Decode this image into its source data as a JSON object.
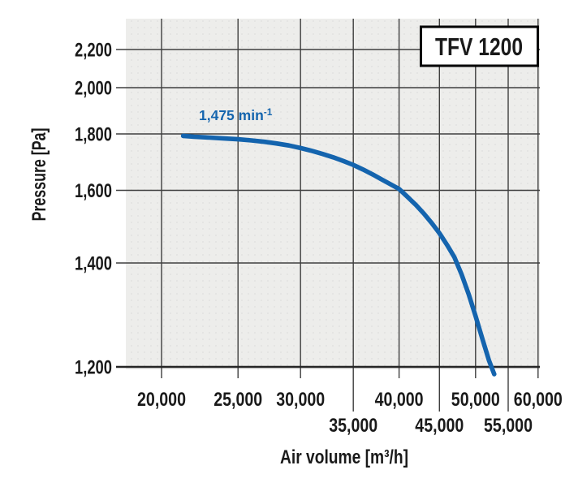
{
  "model_badge": {
    "label": "TFV 1200"
  },
  "curve_label": {
    "main": "1,475 min",
    "sup": "-1",
    "full": "1,475 min⁻¹"
  },
  "axes": {
    "x_title": "Air volume [m³/h]",
    "y_title": "Pressure [Pa]"
  },
  "colors": {
    "curve": "#1464ae",
    "curve_label": "#1565ae",
    "grid": "#3f3f3f",
    "axis_line": "#262626",
    "plot_bg": "#ededeb",
    "plot_dots": "#dfdfdd",
    "text": "#1a1a1a",
    "badge_bg": "#ffffff",
    "badge_border": "#000000",
    "page_bg": "#ffffff"
  },
  "chart_data": {
    "type": "line",
    "title": "TFV 1200",
    "xlabel": "Air volume [m³/h]",
    "ylabel": "Pressure [Pa]",
    "x_scale": "log",
    "y_scale": "nonlinear-reciprocal",
    "xlim": [
      18000,
      60000
    ],
    "ylim": [
      1200,
      2400
    ],
    "grid": true,
    "legend_position": "label-on-curve",
    "x_ticks": [
      {
        "value": 20000,
        "label": "20,000",
        "row": 1
      },
      {
        "value": 25000,
        "label": "25,000",
        "row": 1
      },
      {
        "value": 30000,
        "label": "30,000",
        "row": 1
      },
      {
        "value": 35000,
        "label": "35,000",
        "row": 2
      },
      {
        "value": 40000,
        "label": "40,000",
        "row": 1
      },
      {
        "value": 45000,
        "label": "45,000",
        "row": 2
      },
      {
        "value": 50000,
        "label": "50,000",
        "row": 1
      },
      {
        "value": 55000,
        "label": "55,000",
        "row": 2
      },
      {
        "value": 60000,
        "label": "60,000",
        "row": 1
      }
    ],
    "y_ticks": [
      {
        "value": 2200,
        "label": "2,200"
      },
      {
        "value": 2000,
        "label": "2,000"
      },
      {
        "value": 1800,
        "label": "1,800"
      },
      {
        "value": 1600,
        "label": "1,600"
      },
      {
        "value": 1400,
        "label": "1,400"
      },
      {
        "value": 1200,
        "label": "1,200"
      }
    ],
    "series": [
      {
        "name": "1,475 min⁻¹",
        "speed_rpm": 1475,
        "color": "#1464ae",
        "points": [
          [
            21300,
            1793
          ],
          [
            22000,
            1790
          ],
          [
            23000,
            1787
          ],
          [
            24000,
            1784
          ],
          [
            25000,
            1781
          ],
          [
            26000,
            1777
          ],
          [
            27000,
            1772
          ],
          [
            28000,
            1766
          ],
          [
            29000,
            1759
          ],
          [
            30000,
            1750
          ],
          [
            31000,
            1740
          ],
          [
            32000,
            1729
          ],
          [
            33000,
            1717
          ],
          [
            34000,
            1704
          ],
          [
            35000,
            1690
          ],
          [
            36000,
            1674
          ],
          [
            37000,
            1657
          ],
          [
            38000,
            1639
          ],
          [
            39000,
            1622
          ],
          [
            40000,
            1605
          ],
          [
            41000,
            1582
          ],
          [
            42000,
            1560
          ],
          [
            43000,
            1536
          ],
          [
            44000,
            1510
          ],
          [
            45000,
            1482
          ],
          [
            46000,
            1450
          ],
          [
            47000,
            1416
          ],
          [
            48000,
            1378
          ],
          [
            49000,
            1340
          ],
          [
            50000,
            1298
          ],
          [
            51000,
            1254
          ],
          [
            52000,
            1212
          ],
          [
            52800,
            1186
          ]
        ]
      }
    ]
  }
}
